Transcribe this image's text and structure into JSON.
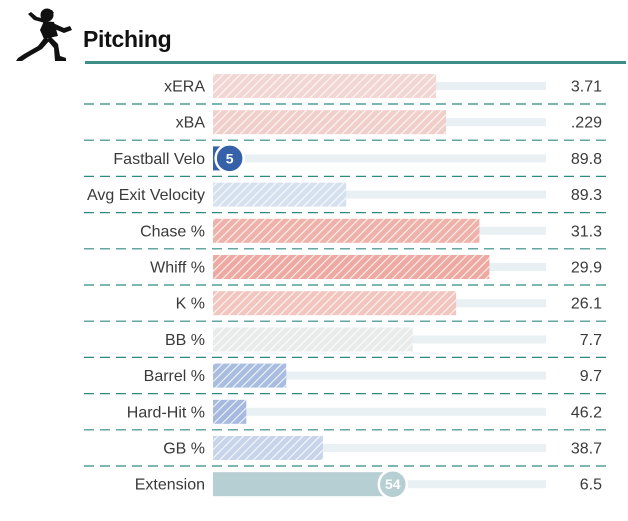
{
  "header": {
    "title": "Pitching",
    "icon": "pitcher-icon"
  },
  "colors": {
    "accent_rule": "#3d8f88",
    "divider": "#2f8a84",
    "track": "#e8f0f3",
    "badge_blue": "#3561a8",
    "badge_teal": "#b5cfd3"
  },
  "chart_data": {
    "type": "bar",
    "title": "Pitching",
    "xlim": [
      0,
      100
    ],
    "rows": [
      {
        "label": "xERA",
        "value": "3.71",
        "percentile": 67,
        "color": "#f2d6d3",
        "style": "hatched"
      },
      {
        "label": "xBA",
        "value": ".229",
        "percentile": 70,
        "color": "#f0cfcb",
        "style": "hatched"
      },
      {
        "label": "Fastball Velo",
        "value": "89.8",
        "percentile": 5,
        "color": "#3561a8",
        "style": "solid",
        "badge": "5"
      },
      {
        "label": "Avg Exit Velocity",
        "value": "89.3",
        "percentile": 40,
        "color": "#d6e1ef",
        "style": "hatched"
      },
      {
        "label": "Chase %",
        "value": "31.3",
        "percentile": 80,
        "color": "#efb2aa",
        "style": "hatched"
      },
      {
        "label": "Whiff %",
        "value": "29.9",
        "percentile": 83,
        "color": "#eeaaa2",
        "style": "hatched"
      },
      {
        "label": "K %",
        "value": "26.1",
        "percentile": 73,
        "color": "#f2c5bf",
        "style": "hatched"
      },
      {
        "label": "BB %",
        "value": "7.7",
        "percentile": 60,
        "color": "#e9ebea",
        "style": "hatched"
      },
      {
        "label": "Barrel %",
        "value": "9.7",
        "percentile": 22,
        "color": "#a9bde0",
        "style": "hatched"
      },
      {
        "label": "Hard-Hit %",
        "value": "46.2",
        "percentile": 10,
        "color": "#a6b9de",
        "style": "hatched"
      },
      {
        "label": "GB %",
        "value": "38.7",
        "percentile": 33,
        "color": "#c7d4ea",
        "style": "hatched"
      },
      {
        "label": "Extension",
        "value": "6.5",
        "percentile": 54,
        "color": "#b5cfd3",
        "style": "solid",
        "badge": "54"
      }
    ]
  }
}
